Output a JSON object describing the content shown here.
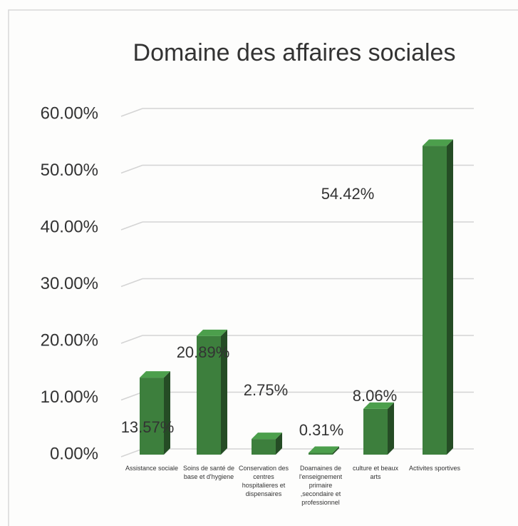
{
  "chart_data": {
    "type": "bar",
    "title": "Domaine des affaires sociales",
    "categories": [
      "Assistance sociale",
      "Soins de santé de base et d'hygiene",
      "Conservation des centres hospitalieres et dispensaires",
      "Doamaines de l'enseignement primaire ,secondaire et professionnel",
      "culture et beaux arts",
      "Activites sportives"
    ],
    "values": [
      13.57,
      20.89,
      2.75,
      0.31,
      8.06,
      54.42
    ],
    "value_labels": [
      "13.57%",
      "20.89%",
      "2.75%",
      "0.31%",
      "8.06%",
      "54.42%"
    ],
    "color": "#3d7f3d",
    "ylim": [
      0,
      60
    ],
    "yticks": [
      {
        "value": 0,
        "label": "0.00%"
      },
      {
        "value": 10,
        "label": "10.00%"
      },
      {
        "value": 20,
        "label": "20.00%"
      },
      {
        "value": 30,
        "label": "30.00%"
      },
      {
        "value": 40,
        "label": "40.00%"
      },
      {
        "value": 50,
        "label": "50.00%"
      },
      {
        "value": 60,
        "label": "60.00%"
      }
    ],
    "grid": true
  }
}
